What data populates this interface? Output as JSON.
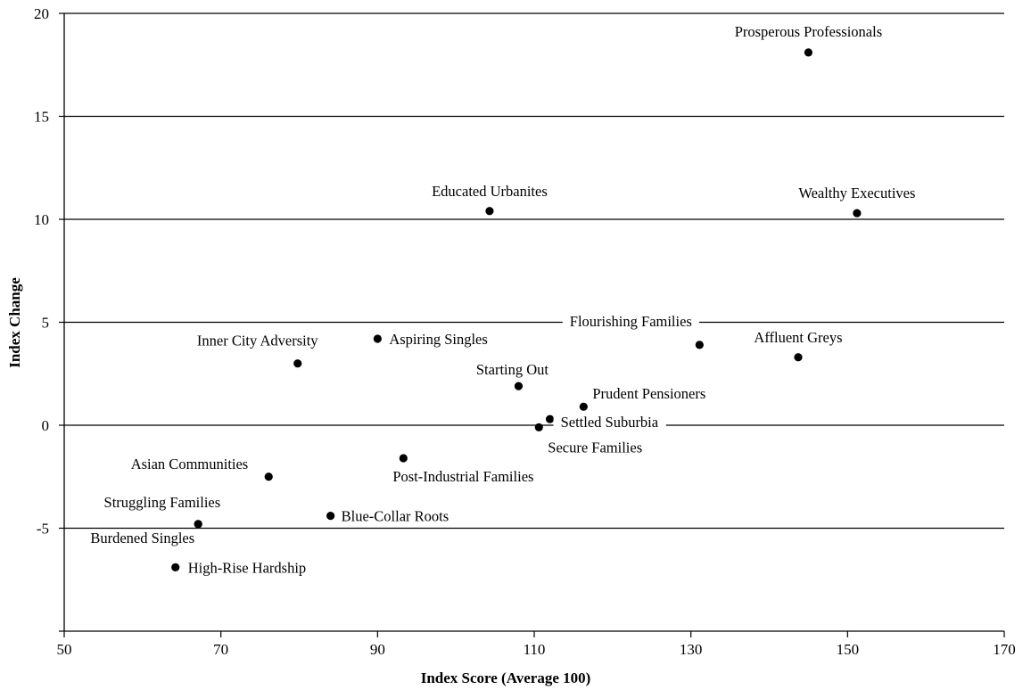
{
  "chart_data": {
    "type": "scatter",
    "title": "",
    "xlabel": "Index Score (Average 100)",
    "ylabel": "Index Change",
    "xlim": [
      50,
      170
    ],
    "ylim": [
      -10,
      20
    ],
    "x_ticks": [
      50,
      70,
      90,
      110,
      130,
      150,
      170
    ],
    "y_ticks": [
      20,
      15,
      10,
      5,
      0,
      -5
    ],
    "grid": "horizontal",
    "legend": "none",
    "marker_color": "#000000",
    "points": [
      {
        "label": "Prosperous Professionals",
        "x": 145,
        "y": 18.1
      },
      {
        "label": "Educated Urbanites",
        "x": 104.3,
        "y": 10.4
      },
      {
        "label": "Wealthy Executives",
        "x": 151.2,
        "y": 10.3
      },
      {
        "label": "Flourishing Families",
        "x": 131.1,
        "y": 3.9
      },
      {
        "label": "Affluent Greys",
        "x": 143.7,
        "y": 3.3
      },
      {
        "label": "Inner City Adversity",
        "x": 79.8,
        "y": 3.0
      },
      {
        "label": "Aspiring Singles",
        "x": 90.0,
        "y": 4.2
      },
      {
        "label": "Starting Out",
        "x": 108.0,
        "y": 1.9
      },
      {
        "label": "Prudent Pensioners",
        "x": 116.3,
        "y": 0.9
      },
      {
        "label": "Settled Suburbia",
        "x": 112.0,
        "y": 0.3
      },
      {
        "label": "Secure Families",
        "x": 110.6,
        "y": -0.1
      },
      {
        "label": "Post-Industrial Families",
        "x": 93.3,
        "y": -1.6
      },
      {
        "label": "Asian Communities",
        "x": 76.1,
        "y": -2.5
      },
      {
        "label": "Blue-Collar Roots",
        "x": 84.0,
        "y": -4.4
      },
      {
        "label": "Struggling Families",
        "x": 67.1,
        "y": -4.8
      },
      {
        "label": "Burdened Singles",
        "x": 67.1,
        "y": -4.8
      },
      {
        "label": "High-Rise Hardship",
        "x": 64.2,
        "y": -6.9
      }
    ]
  }
}
